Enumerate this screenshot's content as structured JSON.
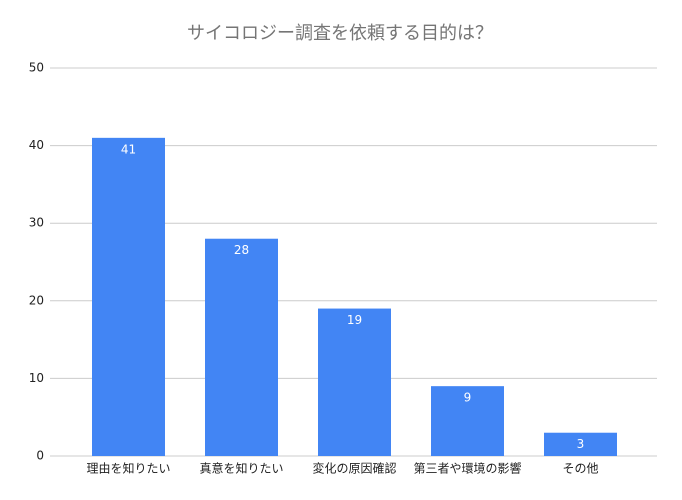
{
  "chart_data": {
    "type": "bar",
    "title": "サイコロジー調査を依頼する目的は？",
    "categories": [
      "理由を知りたい",
      "真意を知りたい",
      "変化の原因確認",
      "第三者や環境の影響",
      "その他"
    ],
    "values": [
      41,
      28,
      19,
      9,
      3
    ],
    "color": "#4285f4",
    "ylim": [
      0,
      50
    ],
    "yticks": [
      0,
      10,
      20,
      30,
      40,
      50
    ],
    "grid": true
  }
}
